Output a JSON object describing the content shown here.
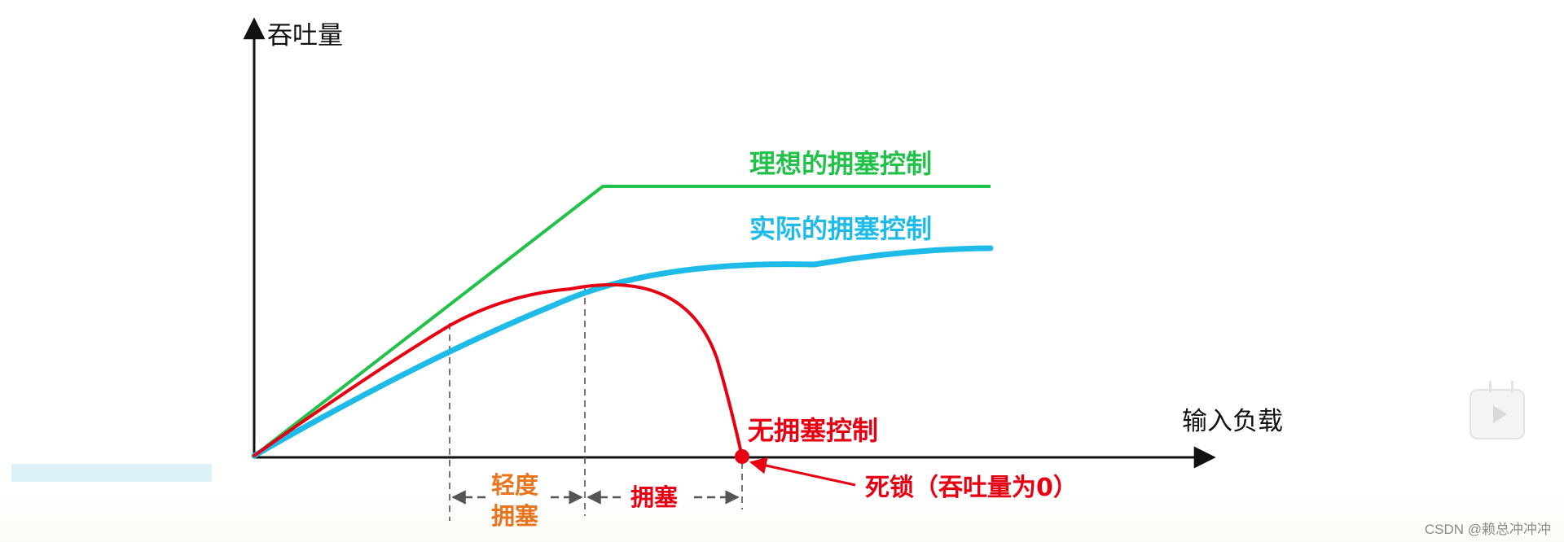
{
  "diagram": {
    "y_axis_label": "吞吐量",
    "x_axis_label": "输入负载",
    "curves": {
      "ideal": {
        "label": "理想的拥塞控制",
        "color": "#21c14a"
      },
      "actual": {
        "label": "实际的拥塞控制",
        "color": "#1fbbe8"
      },
      "none": {
        "label": "无拥塞控制",
        "color": "#e60012"
      }
    },
    "regions": {
      "light": {
        "label_line1": "轻度",
        "label_line2": "拥塞",
        "color": "#e8741d"
      },
      "congestion": {
        "label": "拥塞",
        "color": "#e60012"
      }
    },
    "deadlock": {
      "label": "死锁（吞吐量为0）",
      "color": "#e60012"
    }
  },
  "watermark": "CSDN @赖总冲冲冲",
  "player": {
    "icon": "bilibili-play-icon"
  }
}
